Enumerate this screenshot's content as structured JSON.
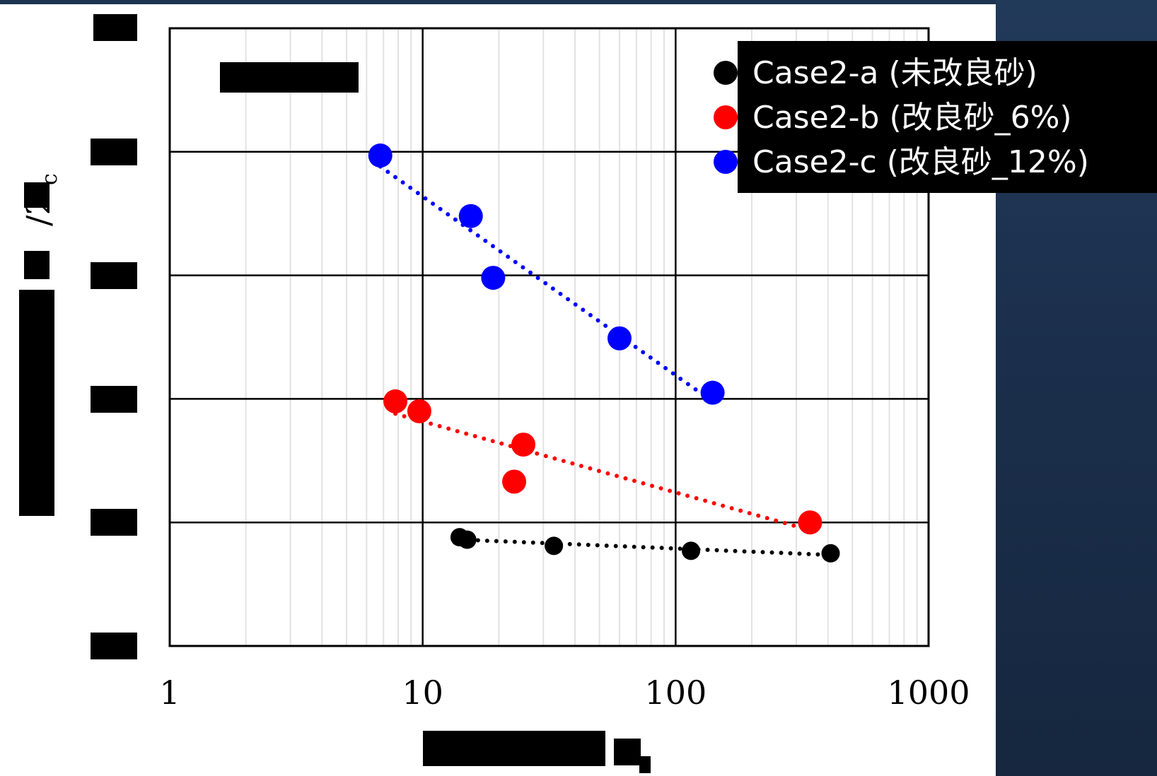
{
  "chart_data": {
    "type": "scatter",
    "title": "",
    "xlabel": "",
    "ylabel_suffix": "/2",
    "ylabel_subscript": "c",
    "x_scale": "log",
    "xlim": [
      1,
      1000
    ],
    "ylim": [
      0,
      5
    ],
    "x_tick_labels": [
      "1",
      "10",
      "100",
      "1000"
    ],
    "x_ticks": [
      1,
      10,
      100,
      1000
    ],
    "y_ticks": [
      0,
      1,
      2,
      3,
      4,
      5
    ],
    "grid": true,
    "legend_position": "top-right",
    "series": [
      {
        "name": "Case2-a (未改良砂)",
        "color": "#000000",
        "trend_color": "#000000",
        "points": [
          [
            14,
            0.88
          ],
          [
            15,
            0.86
          ],
          [
            33,
            0.81
          ],
          [
            115,
            0.77
          ],
          [
            410,
            0.75
          ]
        ]
      },
      {
        "name": "Case2-b (改良砂_6%)",
        "color": "#ff0000",
        "trend_color": "#ff0000",
        "points": [
          [
            7.8,
            1.98
          ],
          [
            9.7,
            1.9
          ],
          [
            25,
            1.63
          ],
          [
            23,
            1.33
          ],
          [
            340,
            1.0
          ]
        ]
      },
      {
        "name": "Case2-c (改良砂_12%)",
        "color": "#0000ff",
        "trend_color": "#0000ff",
        "points": [
          [
            6.8,
            3.97
          ],
          [
            15.5,
            3.48
          ],
          [
            19,
            2.98
          ],
          [
            60,
            2.49
          ],
          [
            140,
            2.05
          ]
        ]
      }
    ]
  }
}
